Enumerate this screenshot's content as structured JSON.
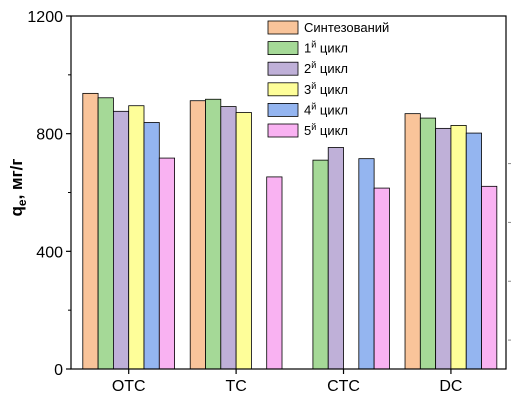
{
  "chart_data": {
    "type": "bar",
    "title": "",
    "xlabel": "",
    "ylabel": {
      "main": "q",
      "sub": "e",
      "rest": ", мг/г"
    },
    "ylim": [
      0,
      1200
    ],
    "yticks": [
      0,
      400,
      800,
      1200
    ],
    "categories": [
      "OTC",
      "TC",
      "CTC",
      "DC"
    ],
    "legend_position": "top-right",
    "series": [
      {
        "name": "Синтезований",
        "legend": {
          "pre": "Синтезований",
          "sup": "",
          "post": ""
        },
        "color": "#F9C49A",
        "values": [
          937,
          912,
          null,
          868
        ]
      },
      {
        "name": "1й цикл",
        "legend": {
          "pre": "1",
          "sup": "й",
          "post": " цикл"
        },
        "color": "#A5D997",
        "values": [
          922,
          917,
          710,
          853
        ]
      },
      {
        "name": "2й цикл",
        "legend": {
          "pre": "2",
          "sup": "й",
          "post": " цикл"
        },
        "color": "#BFB0D8",
        "values": [
          876,
          892,
          753,
          818
        ]
      },
      {
        "name": "3й цикл",
        "legend": {
          "pre": "3",
          "sup": "й",
          "post": " цикл"
        },
        "color": "#FEFE99",
        "values": [
          895,
          872,
          null,
          828
        ]
      },
      {
        "name": "4й цикл",
        "legend": {
          "pre": "4",
          "sup": "й",
          "post": " цикл"
        },
        "color": "#94B5F0",
        "values": [
          838,
          null,
          715,
          802
        ]
      },
      {
        "name": "5й цикл",
        "legend": {
          "pre": "5",
          "sup": "й",
          "post": " цикл"
        },
        "color": "#F9B2F2",
        "values": [
          717,
          653,
          615,
          621
        ]
      }
    ]
  }
}
